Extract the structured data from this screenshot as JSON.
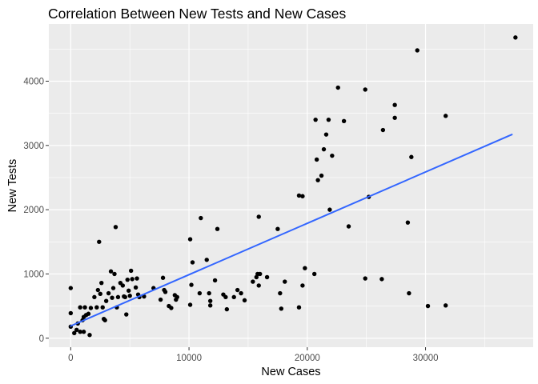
{
  "chart_data": {
    "type": "scatter",
    "title": "Correlation Between New Tests and New Cases",
    "xlabel": "New Cases",
    "ylabel": "New Tests",
    "xlim": [
      -1850,
      39100
    ],
    "ylim": [
      -140,
      4890
    ],
    "xticks": [
      0,
      10000,
      20000,
      30000
    ],
    "yticks": [
      0,
      1000,
      2000,
      3000,
      4000
    ],
    "xtick_labels": [
      "0",
      "10000",
      "20000",
      "30000"
    ],
    "ytick_labels": [
      "0",
      "1000",
      "2000",
      "3000",
      "4000"
    ],
    "grid": true,
    "legend": "none",
    "colors": {
      "panel": "#ebebeb",
      "grid_major": "#ffffff",
      "point": "#000000",
      "fit_line": "#3366ff"
    },
    "fit_line": {
      "x": [
        0,
        37300
      ],
      "y": [
        190,
        3170
      ]
    },
    "points": [
      [
        0,
        780
      ],
      [
        0,
        390
      ],
      [
        0,
        180
      ],
      [
        300,
        80
      ],
      [
        500,
        130
      ],
      [
        600,
        230
      ],
      [
        800,
        100
      ],
      [
        800,
        480
      ],
      [
        1000,
        280
      ],
      [
        1100,
        100
      ],
      [
        1100,
        330
      ],
      [
        1200,
        480
      ],
      [
        1300,
        360
      ],
      [
        1500,
        380
      ],
      [
        1600,
        50
      ],
      [
        1700,
        470
      ],
      [
        2000,
        640
      ],
      [
        2200,
        480
      ],
      [
        2300,
        750
      ],
      [
        2400,
        1500
      ],
      [
        2500,
        690
      ],
      [
        2600,
        860
      ],
      [
        2700,
        480
      ],
      [
        2800,
        300
      ],
      [
        2900,
        280
      ],
      [
        3000,
        580
      ],
      [
        3200,
        700
      ],
      [
        3400,
        1040
      ],
      [
        3500,
        630
      ],
      [
        3600,
        780
      ],
      [
        3700,
        1000
      ],
      [
        3800,
        1730
      ],
      [
        3900,
        480
      ],
      [
        4000,
        640
      ],
      [
        4200,
        860
      ],
      [
        4400,
        820
      ],
      [
        4500,
        650
      ],
      [
        4600,
        640
      ],
      [
        4700,
        370
      ],
      [
        4800,
        910
      ],
      [
        4900,
        740
      ],
      [
        5000,
        660
      ],
      [
        5100,
        1050
      ],
      [
        5200,
        920
      ],
      [
        5500,
        790
      ],
      [
        5600,
        930
      ],
      [
        5700,
        680
      ],
      [
        5800,
        640
      ],
      [
        6200,
        650
      ],
      [
        7000,
        780
      ],
      [
        7600,
        600
      ],
      [
        7800,
        940
      ],
      [
        7900,
        750
      ],
      [
        8000,
        720
      ],
      [
        8300,
        500
      ],
      [
        8500,
        470
      ],
      [
        8800,
        670
      ],
      [
        8900,
        600
      ],
      [
        9000,
        640
      ],
      [
        10100,
        1540
      ],
      [
        10100,
        520
      ],
      [
        10200,
        830
      ],
      [
        10300,
        1180
      ],
      [
        10900,
        700
      ],
      [
        11000,
        1870
      ],
      [
        11500,
        1220
      ],
      [
        11700,
        700
      ],
      [
        11800,
        580
      ],
      [
        11800,
        510
      ],
      [
        12200,
        900
      ],
      [
        12400,
        1700
      ],
      [
        12900,
        680
      ],
      [
        13100,
        640
      ],
      [
        13200,
        450
      ],
      [
        13800,
        640
      ],
      [
        14100,
        750
      ],
      [
        14400,
        700
      ],
      [
        14700,
        590
      ],
      [
        15400,
        880
      ],
      [
        15700,
        950
      ],
      [
        15800,
        1000
      ],
      [
        15900,
        1890
      ],
      [
        15900,
        820
      ],
      [
        16000,
        1000
      ],
      [
        16600,
        950
      ],
      [
        17500,
        1700
      ],
      [
        17700,
        700
      ],
      [
        17800,
        460
      ],
      [
        18100,
        880
      ],
      [
        19300,
        2220
      ],
      [
        19300,
        480
      ],
      [
        19600,
        2210
      ],
      [
        19600,
        820
      ],
      [
        19800,
        1090
      ],
      [
        20600,
        1000
      ],
      [
        20700,
        3400
      ],
      [
        20800,
        2780
      ],
      [
        20900,
        2460
      ],
      [
        21200,
        2530
      ],
      [
        21400,
        2940
      ],
      [
        21600,
        3170
      ],
      [
        21800,
        3400
      ],
      [
        21900,
        2000
      ],
      [
        22100,
        2840
      ],
      [
        22600,
        3900
      ],
      [
        23100,
        3380
      ],
      [
        23500,
        1740
      ],
      [
        24900,
        3870
      ],
      [
        24900,
        930
      ],
      [
        25200,
        2200
      ],
      [
        26300,
        920
      ],
      [
        26400,
        3240
      ],
      [
        27400,
        3630
      ],
      [
        27400,
        3430
      ],
      [
        28500,
        1800
      ],
      [
        28600,
        700
      ],
      [
        28800,
        2820
      ],
      [
        29300,
        4480
      ],
      [
        30200,
        500
      ],
      [
        31700,
        3460
      ],
      [
        31700,
        510
      ],
      [
        37600,
        4680
      ]
    ]
  }
}
